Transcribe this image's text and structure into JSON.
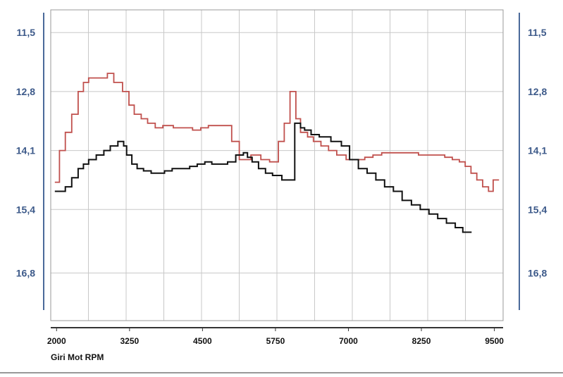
{
  "colors": {
    "axis_blue": "#4a6a9a",
    "label_blue": "#3d5a8a",
    "grid": "#c8c8c8",
    "frame": "#9a9a9a",
    "red_series": "#c0504d",
    "black_series": "#111111",
    "bottom_rule": "#333333"
  },
  "chart_data": {
    "type": "line",
    "xlabel": "Giri Mot  RPM",
    "ylabel": "",
    "title": "",
    "x_ticks": [
      "2000",
      "3250",
      "4500",
      "5750",
      "7000",
      "8250",
      "9500"
    ],
    "x_tick_values": [
      2000,
      3250,
      4500,
      5750,
      7000,
      8250,
      9500
    ],
    "xlim": [
      1900,
      9650
    ],
    "y_ticks": [
      "11,5",
      "12,8",
      "14,1",
      "15,4",
      "16,8"
    ],
    "y_tick_values": [
      11.5,
      12.8,
      14.1,
      15.4,
      16.8
    ],
    "ylim": [
      11.0,
      17.85
    ],
    "y_inverted": true,
    "grid": true,
    "series": [
      {
        "color": "red",
        "step": true,
        "x": [
          1970,
          2050,
          2150,
          2260,
          2370,
          2460,
          2550,
          2700,
          2870,
          2980,
          3130,
          3240,
          3330,
          3450,
          3560,
          3690,
          3820,
          4000,
          4150,
          4330,
          4470,
          4600,
          4780,
          4900,
          5000,
          5130,
          5250,
          5330,
          5500,
          5650,
          5800,
          5900,
          6000,
          6100,
          6180,
          6300,
          6400,
          6530,
          6660,
          6800,
          6960,
          7100,
          7280,
          7420,
          7570,
          7720,
          7900,
          8070,
          8200,
          8350,
          8500,
          8650,
          8780,
          8900,
          9000,
          9100,
          9200,
          9300,
          9400,
          9480,
          9580
        ],
        "y": [
          14.8,
          14.1,
          13.7,
          13.3,
          12.8,
          12.6,
          12.5,
          12.5,
          12.4,
          12.6,
          12.8,
          13.1,
          13.3,
          13.4,
          13.5,
          13.6,
          13.55,
          13.6,
          13.6,
          13.65,
          13.6,
          13.55,
          13.55,
          13.55,
          13.9,
          14.3,
          14.3,
          14.2,
          14.3,
          14.35,
          13.9,
          13.5,
          12.8,
          13.4,
          13.7,
          13.8,
          13.9,
          14.0,
          14.1,
          14.2,
          14.3,
          14.3,
          14.25,
          14.2,
          14.15,
          14.15,
          14.15,
          14.15,
          14.2,
          14.2,
          14.2,
          14.25,
          14.3,
          14.35,
          14.45,
          14.6,
          14.75,
          14.9,
          15.0,
          14.75,
          14.75
        ]
      },
      {
        "color": "black",
        "step": true,
        "x": [
          1970,
          2150,
          2260,
          2370,
          2460,
          2550,
          2680,
          2810,
          2920,
          3050,
          3150,
          3200,
          3290,
          3380,
          3490,
          3620,
          3750,
          3850,
          3980,
          4120,
          4280,
          4410,
          4540,
          4660,
          4800,
          4930,
          5070,
          5200,
          5270,
          5350,
          5460,
          5580,
          5700,
          5860,
          6000,
          6080,
          6180,
          6250,
          6360,
          6500,
          6700,
          6880,
          7020,
          7170,
          7320,
          7470,
          7620,
          7770,
          7920,
          8080,
          8230,
          8380,
          8530,
          8680,
          8830,
          8960,
          9110
        ],
        "y": [
          15.0,
          14.9,
          14.7,
          14.5,
          14.4,
          14.3,
          14.2,
          14.1,
          14.0,
          13.9,
          14.0,
          14.2,
          14.4,
          14.5,
          14.55,
          14.6,
          14.6,
          14.55,
          14.5,
          14.5,
          14.45,
          14.4,
          14.35,
          14.4,
          14.4,
          14.35,
          14.2,
          14.15,
          14.25,
          14.35,
          14.5,
          14.6,
          14.65,
          14.75,
          14.75,
          13.5,
          13.6,
          13.65,
          13.75,
          13.8,
          13.9,
          14.0,
          14.3,
          14.5,
          14.6,
          14.75,
          14.9,
          15.0,
          15.2,
          15.3,
          15.4,
          15.5,
          15.6,
          15.7,
          15.8,
          15.9,
          15.9
        ]
      }
    ]
  }
}
